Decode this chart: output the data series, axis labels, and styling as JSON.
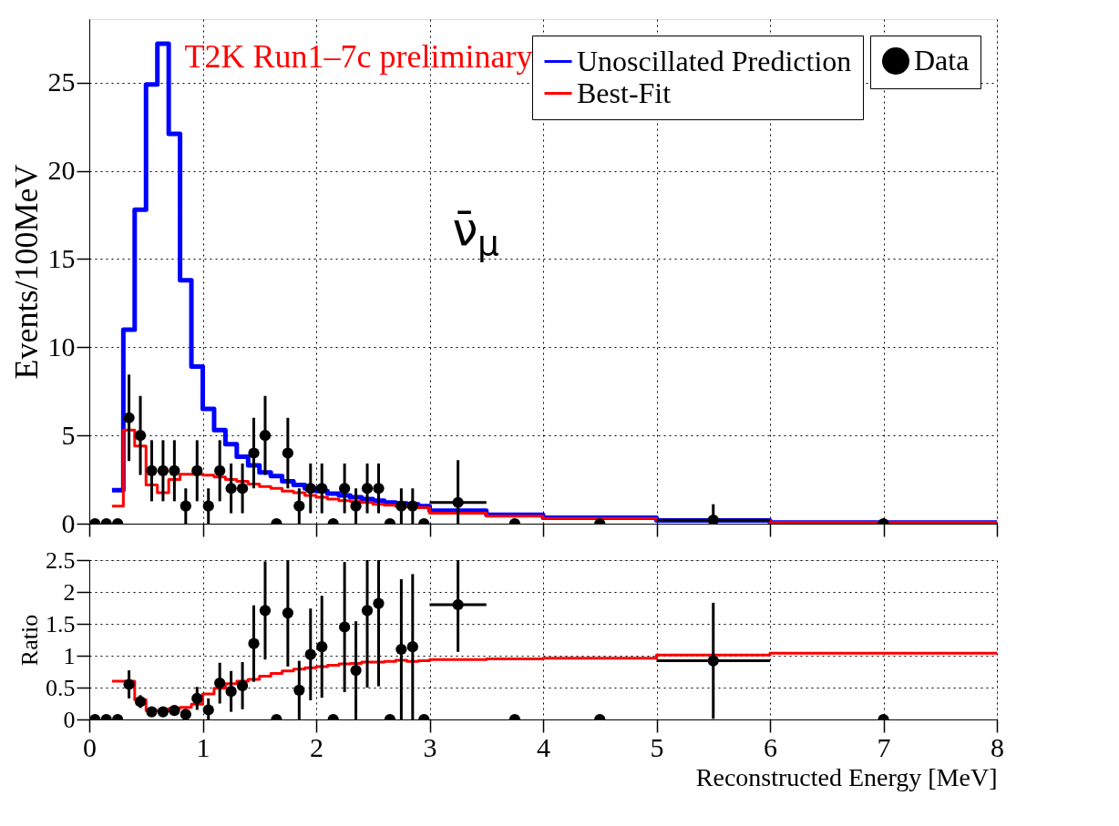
{
  "chart_data": [
    {
      "type": "step",
      "ylabel": "Events/100MeV",
      "xlim": [
        0,
        8
      ],
      "xticks": [
        0,
        1,
        2,
        3,
        4,
        5,
        6,
        7,
        8
      ],
      "ylim": [
        0,
        28.6
      ],
      "yticks": [
        0,
        5,
        10,
        15,
        20,
        25
      ],
      "tick_labels": "y",
      "grid": true,
      "legend": "top right",
      "annotations": [
        "T2K Run1–7c preliminary",
        "ν̄$_{μ}$"
      ],
      "series": [
        {
          "name": "Unoscillated Prediction",
          "color": "#0000ff",
          "x": [
            0.2,
            0.3,
            0.4,
            0.5,
            0.6,
            0.7,
            0.8,
            0.9,
            1.0,
            1.1,
            1.2,
            1.3,
            1.4,
            1.5,
            1.6,
            1.7,
            1.8,
            1.9,
            2.0,
            2.1,
            2.2,
            2.3,
            2.4,
            2.5,
            2.6,
            2.7,
            2.8,
            2.9,
            3.0,
            3.5,
            4.0,
            5.0,
            6.0,
            8.0
          ],
          "values": [
            1.9,
            11.0,
            17.8,
            24.9,
            27.2,
            22.1,
            13.8,
            8.9,
            6.5,
            5.3,
            4.5,
            3.8,
            3.3,
            2.9,
            2.7,
            2.4,
            2.2,
            2.0,
            1.85,
            1.7,
            1.6,
            1.5,
            1.4,
            1.3,
            1.2,
            1.15,
            1.1,
            1.0,
            0.73,
            0.5,
            0.33,
            0.18,
            0.07,
            0.07
          ]
        },
        {
          "name": "Best-Fit",
          "color": "#ff0000",
          "x": [
            0.2,
            0.3,
            0.4,
            0.5,
            0.6,
            0.7,
            0.8,
            0.9,
            1.0,
            1.1,
            1.2,
            1.3,
            1.4,
            1.5,
            1.6,
            1.7,
            1.8,
            1.9,
            2.0,
            2.1,
            2.2,
            2.3,
            2.4,
            2.5,
            2.6,
            2.7,
            2.8,
            2.9,
            3.0,
            3.5,
            4.0,
            5.0,
            6.0,
            8.0
          ],
          "values": [
            1.0,
            5.3,
            4.4,
            2.2,
            1.75,
            2.5,
            2.8,
            2.8,
            2.75,
            2.65,
            2.5,
            2.4,
            2.25,
            2.1,
            2.0,
            1.85,
            1.75,
            1.6,
            1.5,
            1.4,
            1.3,
            1.25,
            1.2,
            1.1,
            1.05,
            1.0,
            0.95,
            0.9,
            0.6,
            0.43,
            0.3,
            0.18,
            0.07,
            0.07
          ]
        },
        {
          "name": "Data",
          "type": "scatter",
          "marker": "circle",
          "color": "#000000",
          "x": [
            0.05,
            0.15,
            0.25,
            0.35,
            0.45,
            0.55,
            0.65,
            0.75,
            0.85,
            0.95,
            1.05,
            1.15,
            1.25,
            1.35,
            1.45,
            1.55,
            1.65,
            1.75,
            1.85,
            1.95,
            2.05,
            2.15,
            2.25,
            2.35,
            2.45,
            2.55,
            2.65,
            2.75,
            2.85,
            2.95,
            3.25,
            3.75,
            4.5,
            5.5,
            7
          ],
          "values": [
            0,
            0,
            0,
            6,
            5,
            3,
            3,
            3,
            1,
            3,
            1,
            3,
            2,
            2,
            4,
            5,
            0,
            4,
            1,
            2,
            2,
            0,
            2,
            1,
            2,
            2,
            0,
            1,
            1,
            0,
            1.2,
            0,
            0,
            0.2,
            0
          ],
          "errors": [
            null,
            null,
            null,
            2.45,
            2.24,
            1.73,
            1.73,
            1.73,
            1,
            1.73,
            1,
            1.73,
            1.41,
            1.41,
            2,
            2.24,
            null,
            2,
            1,
            1.41,
            1.41,
            null,
            1.41,
            1,
            1.41,
            1.41,
            null,
            1,
            1,
            null,
            [
              0,
              3.6
            ],
            null,
            null,
            [
              0,
              1.1
            ],
            null
          ],
          "xerrors": [
            null,
            null,
            null,
            null,
            null,
            null,
            null,
            null,
            null,
            null,
            null,
            null,
            null,
            null,
            null,
            null,
            null,
            null,
            null,
            null,
            null,
            null,
            null,
            null,
            null,
            null,
            null,
            null,
            null,
            null,
            0.25,
            null,
            null,
            0.5,
            null
          ]
        }
      ]
    },
    {
      "type": "step",
      "ylabel": "Ratio",
      "xlabel": "Reconstructed Energy [MeV]",
      "xlim": [
        0,
        8
      ],
      "xticks": [
        0,
        1,
        2,
        3,
        4,
        5,
        6,
        7,
        8
      ],
      "ylim": [
        0,
        2.5
      ],
      "yticks": [
        0,
        0.5,
        1,
        1.5,
        2,
        2.5
      ],
      "grid": true,
      "series": [
        {
          "color": "#ff0000",
          "x": [
            0.2,
            0.3,
            0.4,
            0.5,
            0.6,
            0.7,
            0.8,
            0.9,
            1.0,
            1.1,
            1.2,
            1.3,
            1.4,
            1.5,
            1.6,
            1.7,
            1.8,
            1.9,
            2.0,
            2.1,
            2.2,
            2.3,
            2.4,
            2.5,
            2.6,
            2.7,
            2.8,
            2.9,
            3.0,
            3.5,
            4.0,
            5.0,
            6.0,
            8.0
          ],
          "values": [
            0.6,
            0.6,
            0.31,
            0.14,
            0.14,
            0.17,
            0.19,
            0.24,
            0.4,
            0.49,
            0.56,
            0.6,
            0.63,
            0.68,
            0.72,
            0.76,
            0.79,
            0.81,
            0.83,
            0.85,
            0.87,
            0.88,
            0.9,
            0.9,
            0.91,
            0.93,
            0.91,
            0.92,
            0.94,
            0.95,
            0.96,
            1.01,
            1.04,
            1.04
          ]
        },
        {
          "type": "scatter",
          "marker": "circle",
          "color": "#000000",
          "x": [
            0.05,
            0.15,
            0.25,
            0.35,
            0.45,
            0.55,
            0.65,
            0.75,
            0.85,
            0.95,
            1.05,
            1.15,
            1.25,
            1.35,
            1.45,
            1.55,
            1.65,
            1.75,
            1.85,
            1.95,
            2.05,
            2.15,
            2.25,
            2.35,
            2.45,
            2.55,
            2.65,
            2.75,
            2.85,
            2.95,
            3.25,
            3.75,
            4.5,
            5.5,
            7
          ],
          "values": [
            0,
            0,
            0,
            0.55,
            0.28,
            0.12,
            0.12,
            0.14,
            0.08,
            0.33,
            0.15,
            0.57,
            0.44,
            0.53,
            1.19,
            1.71,
            0,
            1.67,
            0.46,
            1.02,
            1.14,
            0,
            1.45,
            0.77,
            1.71,
            1.82,
            0,
            1.1,
            1.14,
            0,
            1.8,
            0,
            0,
            0.92,
            0
          ],
          "errors": [
            null,
            null,
            null,
            0.22,
            0.1,
            null,
            null,
            null,
            null,
            0.18,
            0.18,
            0.32,
            0.32,
            0.37,
            0.6,
            0.77,
            null,
            [
              0.83,
              2.5
            ],
            0.46,
            0.72,
            0.8,
            null,
            1.02,
            0.77,
            [
              0.5,
              2.5
            ],
            [
              0.52,
              2.5
            ],
            null,
            1.1,
            1.14,
            null,
            [
              1.06,
              2.5
            ],
            null,
            null,
            0.91,
            null
          ],
          "xerrors": [
            null,
            null,
            null,
            null,
            null,
            null,
            null,
            null,
            null,
            null,
            null,
            null,
            null,
            null,
            null,
            null,
            null,
            null,
            null,
            null,
            null,
            null,
            null,
            null,
            null,
            null,
            null,
            null,
            null,
            null,
            0.25,
            null,
            null,
            0.5,
            null
          ]
        }
      ]
    }
  ]
}
